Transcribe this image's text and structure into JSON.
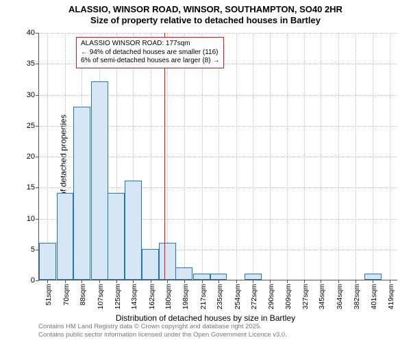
{
  "chart": {
    "type": "histogram",
    "title_line1": "ALASSIO, WINSOR ROAD, WINSOR, SOUTHAMPTON, SO40 2HR",
    "title_line2": "Size of property relative to detached houses in Bartley",
    "title_fontsize": 13,
    "xlabel": "Distribution of detached houses by size in Bartley",
    "ylabel": "Number of detached properties",
    "label_fontsize": 12,
    "background_color": "#ffffff",
    "grid_color": "#bdbdbd",
    "axis_color": "#555555",
    "bar_fill": "#d7e6f4",
    "bar_border": "#1f77b4",
    "marker_color": "#ee1111",
    "ylim": [
      0,
      40
    ],
    "yticks": [
      0,
      5,
      10,
      15,
      20,
      25,
      30,
      35,
      40
    ],
    "xticks_values": [
      51,
      70,
      88,
      107,
      125,
      143,
      162,
      180,
      198,
      217,
      235,
      254,
      272,
      290,
      309,
      327,
      345,
      364,
      382,
      401,
      419
    ],
    "xticks_labels": [
      "51sqm",
      "70sqm",
      "88sqm",
      "107sqm",
      "125sqm",
      "143sqm",
      "162sqm",
      "180sqm",
      "198sqm",
      "217sqm",
      "235sqm",
      "254sqm",
      "272sqm",
      "290sqm",
      "309sqm",
      "327sqm",
      "345sqm",
      "364sqm",
      "382sqm",
      "401sqm",
      "419sqm"
    ],
    "xlim": [
      42,
      428
    ],
    "bar_width_sqm": 18.4,
    "bars": [
      {
        "x": 51,
        "y": 6
      },
      {
        "x": 70,
        "y": 14
      },
      {
        "x": 88,
        "y": 28
      },
      {
        "x": 107,
        "y": 32
      },
      {
        "x": 125,
        "y": 14
      },
      {
        "x": 143,
        "y": 16
      },
      {
        "x": 162,
        "y": 5
      },
      {
        "x": 180,
        "y": 6
      },
      {
        "x": 198,
        "y": 2
      },
      {
        "x": 217,
        "y": 1
      },
      {
        "x": 235,
        "y": 1
      },
      {
        "x": 254,
        "y": 0
      },
      {
        "x": 272,
        "y": 1
      },
      {
        "x": 290,
        "y": 0
      },
      {
        "x": 309,
        "y": 0
      },
      {
        "x": 327,
        "y": 0
      },
      {
        "x": 345,
        "y": 0
      },
      {
        "x": 364,
        "y": 0
      },
      {
        "x": 382,
        "y": 0
      },
      {
        "x": 401,
        "y": 1
      },
      {
        "x": 419,
        "y": 0
      }
    ],
    "marker_x": 177,
    "annotation": {
      "line1": "ALASSIO WINSOR ROAD: 177sqm",
      "line2": "← 94% of detached houses are smaller (116)",
      "line3": "6% of semi-detached houses are larger (8) →",
      "box_border": "#ee1111",
      "box_bg": "#ffffff",
      "fontsize": 10
    },
    "footer_line1": "Contains HM Land Registry data © Crown copyright and database right 2025.",
    "footer_line2": "Contains public sector information licensed under the Open Government Licence v3.0.",
    "footer_color": "#777777",
    "footer_fontsize": 9.5
  }
}
